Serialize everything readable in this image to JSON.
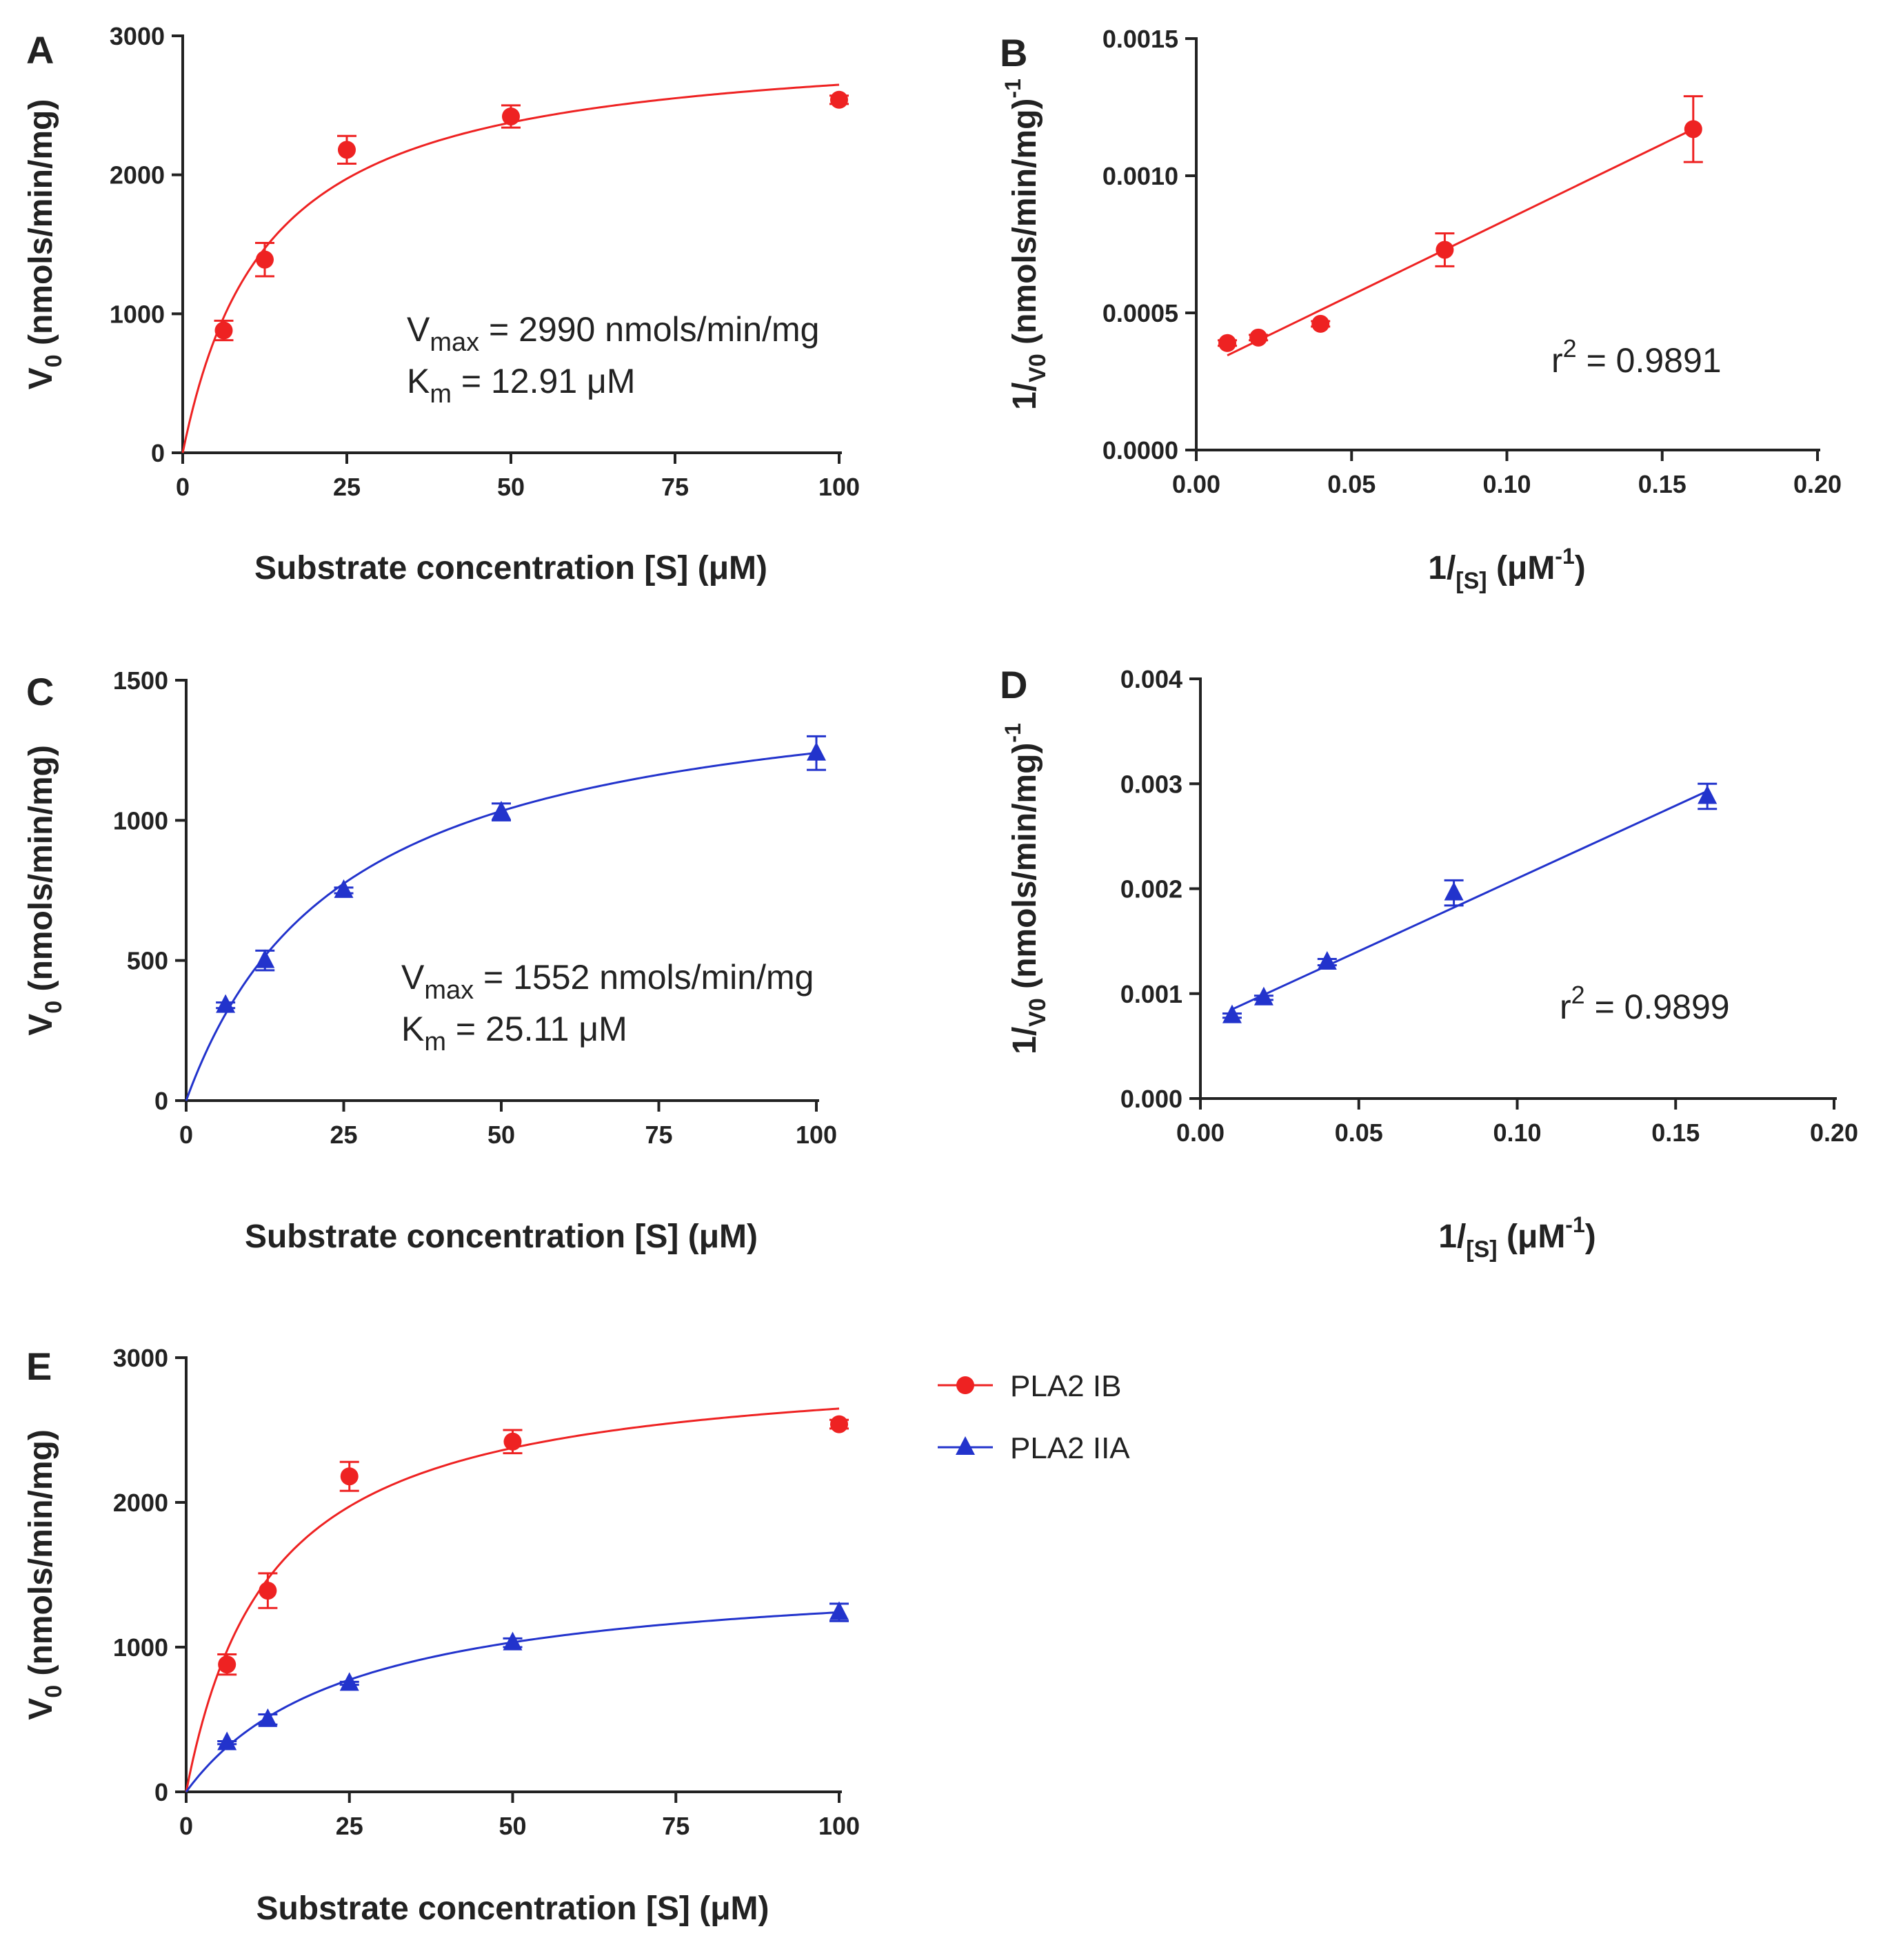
{
  "colors": {
    "red": "#ee2222",
    "blue": "#2233cc",
    "axis": "#222222"
  },
  "chart_data": [
    {
      "panel": "A",
      "type": "scatter",
      "title": "",
      "xlabel": "Substrate concentration [S] (μM)",
      "ylabel": "V",
      "ylabel_sub": "0",
      "ylabel_rest": " (nmols/min/mg)",
      "xlim": [
        0,
        100
      ],
      "ylim": [
        0,
        3000
      ],
      "xticks": [
        0,
        25,
        50,
        75,
        100
      ],
      "xticklabels": [
        "0",
        "25",
        "50",
        "75",
        "100"
      ],
      "yticks": [
        0,
        1000,
        2000,
        3000
      ],
      "yticklabels": [
        "0",
        "1000",
        "2000",
        "3000"
      ],
      "series": [
        {
          "name": "PLA2 IB",
          "marker": "circle",
          "color": "#ee2222",
          "x": [
            6.25,
            12.5,
            25,
            50,
            100
          ],
          "y": [
            880,
            1390,
            2180,
            2420,
            2540
          ],
          "err": [
            70,
            120,
            100,
            80,
            30
          ],
          "fit": {
            "model": "michaelis-menten",
            "vmax": 2990,
            "km": 12.91
          }
        }
      ],
      "annotations": [
        {
          "main": "V",
          "sub": "max",
          "rest": " = 2990 nmols/min/mg"
        },
        {
          "main": "K",
          "sub": "m",
          "rest": "    = 12.91 μM"
        }
      ]
    },
    {
      "panel": "B",
      "type": "scatter",
      "title": "",
      "xlabel": "1/",
      "xlabel_sub": "[S]",
      "xlabel_rest": " (μM",
      "xlabel_sup": "-1",
      "xlabel_end": ")",
      "ylabel": "1/",
      "ylabel_sub": "V0",
      "ylabel_rest": " (nmols/min/mg)",
      "ylabel_sup": "-1",
      "xlim": [
        0,
        0.2
      ],
      "ylim": [
        0,
        0.0015
      ],
      "xticks": [
        0,
        0.05,
        0.1,
        0.15,
        0.2
      ],
      "xticklabels": [
        "0.00",
        "0.05",
        "0.10",
        "0.15",
        "0.20"
      ],
      "yticks": [
        0,
        0.0005,
        0.001,
        0.0015
      ],
      "yticklabels": [
        "0.0000",
        "0.0005",
        "0.0010",
        "0.0015"
      ],
      "series": [
        {
          "name": "PLA2 IB",
          "marker": "circle",
          "color": "#ee2222",
          "x": [
            0.01,
            0.02,
            0.04,
            0.08,
            0.16
          ],
          "y": [
            0.00039,
            0.00041,
            0.00046,
            0.00073,
            0.00117
          ],
          "err": [
            1e-05,
            1e-05,
            1e-05,
            6e-05,
            0.00012
          ],
          "fit": {
            "model": "linear",
            "x0": 0.01,
            "y0": 0.000345,
            "x1": 0.16,
            "y1": 0.00117
          }
        }
      ],
      "annotations": [
        {
          "main": "r",
          "sup": "2",
          "rest": " = 0.9891"
        }
      ]
    },
    {
      "panel": "C",
      "type": "scatter",
      "title": "",
      "xlabel": "Substrate concentration [S] (μM)",
      "ylabel": "V",
      "ylabel_sub": "0",
      "ylabel_rest": " (nmols/min/mg)",
      "xlim": [
        0,
        100
      ],
      "ylim": [
        0,
        1500
      ],
      "xticks": [
        0,
        25,
        50,
        75,
        100
      ],
      "xticklabels": [
        "0",
        "25",
        "50",
        "75",
        "100"
      ],
      "yticks": [
        0,
        500,
        1000,
        1500
      ],
      "yticklabels": [
        "0",
        "500",
        "1000",
        "1500"
      ],
      "series": [
        {
          "name": "PLA2 IIA",
          "marker": "triangle",
          "color": "#2233cc",
          "x": [
            6.25,
            12.5,
            25,
            50,
            100
          ],
          "y": [
            340,
            500,
            750,
            1030,
            1240
          ],
          "err": [
            10,
            35,
            10,
            30,
            60
          ],
          "fit": {
            "model": "michaelis-menten",
            "vmax": 1552,
            "km": 25.11
          }
        }
      ],
      "annotations": [
        {
          "main": "V",
          "sub": "max",
          "rest": " = 1552 nmols/min/mg"
        },
        {
          "main": "K",
          "sub": "m",
          "rest": "    = 25.11 μM"
        }
      ]
    },
    {
      "panel": "D",
      "type": "scatter",
      "title": "",
      "xlabel": "1/",
      "xlabel_sub": "[S]",
      "xlabel_rest": " (μM",
      "xlabel_sup": "-1",
      "xlabel_end": ")",
      "ylabel": "1/",
      "ylabel_sub": "V0",
      "ylabel_rest": " (nmols/min/mg)",
      "ylabel_sup": "-1",
      "xlim": [
        0,
        0.2
      ],
      "ylim": [
        0,
        0.004
      ],
      "xticks": [
        0,
        0.05,
        0.1,
        0.15,
        0.2
      ],
      "xticklabels": [
        "0.00",
        "0.05",
        "0.10",
        "0.15",
        "0.20"
      ],
      "yticks": [
        0,
        0.001,
        0.002,
        0.003,
        0.004
      ],
      "yticklabels": [
        "0.000",
        "0.001",
        "0.002",
        "0.003",
        "0.004"
      ],
      "series": [
        {
          "name": "PLA2 IIA",
          "marker": "triangle",
          "color": "#2233cc",
          "x": [
            0.01,
            0.02,
            0.04,
            0.08,
            0.16
          ],
          "y": [
            0.00079,
            0.00096,
            0.0013,
            0.00196,
            0.00288
          ],
          "err": [
            2e-05,
            2e-05,
            3e-05,
            0.00012,
            0.00012
          ],
          "fit": {
            "model": "linear",
            "x0": 0.01,
            "y0": 0.00085,
            "x1": 0.16,
            "y1": 0.00293
          }
        }
      ],
      "annotations": [
        {
          "main": "r",
          "sup": "2",
          "rest": " = 0.9899"
        }
      ]
    },
    {
      "panel": "E",
      "type": "scatter",
      "title": "",
      "xlabel": "Substrate concentration [S] (μM)",
      "ylabel": "V",
      "ylabel_sub": "0",
      "ylabel_rest": " (nmols/min/mg)",
      "xlim": [
        0,
        100
      ],
      "ylim": [
        0,
        3000
      ],
      "xticks": [
        0,
        25,
        50,
        75,
        100
      ],
      "xticklabels": [
        "0",
        "25",
        "50",
        "75",
        "100"
      ],
      "yticks": [
        0,
        1000,
        2000,
        3000
      ],
      "yticklabels": [
        "0",
        "1000",
        "2000",
        "3000"
      ],
      "legend": {
        "position": "right",
        "entries": [
          "PLA2 IB",
          "PLA2 IIA"
        ]
      },
      "series": [
        {
          "name": "PLA2 IB",
          "marker": "circle",
          "color": "#ee2222",
          "x": [
            6.25,
            12.5,
            25,
            50,
            100
          ],
          "y": [
            880,
            1390,
            2180,
            2420,
            2540
          ],
          "err": [
            70,
            120,
            100,
            80,
            30
          ],
          "fit": {
            "model": "michaelis-menten",
            "vmax": 2990,
            "km": 12.91
          }
        },
        {
          "name": "PLA2 IIA",
          "marker": "triangle",
          "color": "#2233cc",
          "x": [
            6.25,
            12.5,
            25,
            50,
            100
          ],
          "y": [
            340,
            500,
            750,
            1030,
            1240
          ],
          "err": [
            10,
            35,
            10,
            30,
            60
          ],
          "fit": {
            "model": "michaelis-menten",
            "vmax": 1552,
            "km": 25.11
          }
        }
      ],
      "annotations": []
    }
  ]
}
